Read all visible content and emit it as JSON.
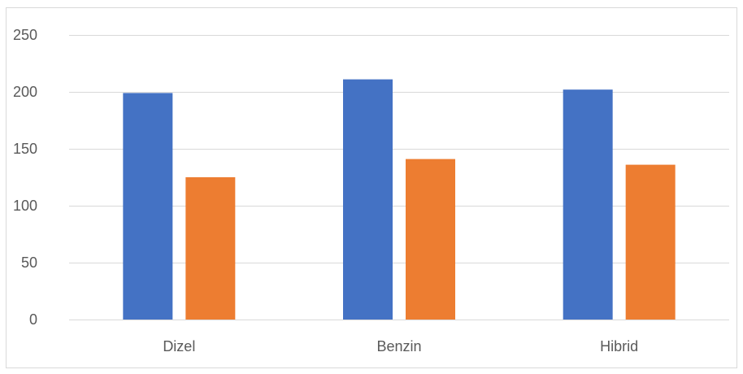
{
  "chart_data": {
    "type": "bar",
    "title": "",
    "xlabel": "",
    "ylabel": "",
    "categories": [
      "Dizel",
      "Benzin",
      "Hibrid"
    ],
    "series": [
      {
        "values": [
          199,
          211,
          202
        ],
        "color": "#4472c4"
      },
      {
        "values": [
          125,
          141,
          136
        ],
        "color": "#ed7d31"
      }
    ],
    "ylim": [
      0,
      250
    ],
    "yticks": [
      0,
      50,
      100,
      150,
      200,
      250
    ],
    "grid": true,
    "legend": "none"
  }
}
